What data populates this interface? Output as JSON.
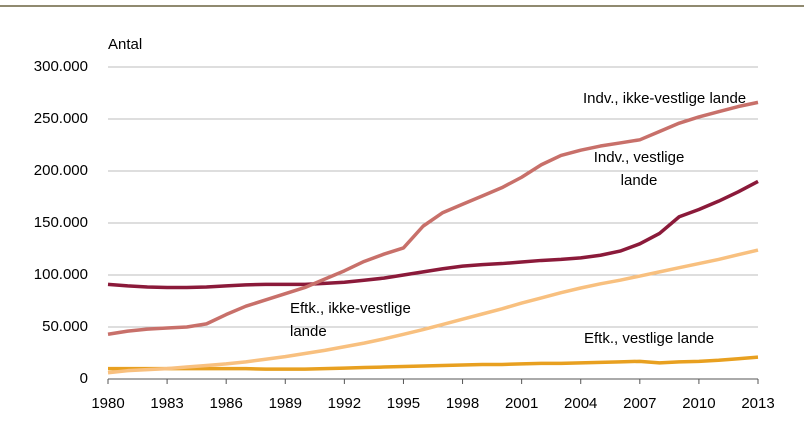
{
  "chart_data": {
    "type": "line",
    "y_axis_label": "Antal",
    "x": [
      1980,
      1981,
      1982,
      1983,
      1984,
      1985,
      1986,
      1987,
      1988,
      1989,
      1990,
      1991,
      1992,
      1993,
      1994,
      1995,
      1996,
      1997,
      1998,
      1999,
      2000,
      2001,
      2002,
      2003,
      2004,
      2005,
      2006,
      2007,
      2008,
      2009,
      2010,
      2011,
      2012,
      2013
    ],
    "series": [
      {
        "name": "Indv., ikke-vestlige lande",
        "color": "#c8706a",
        "values": [
          43000,
          46000,
          48000,
          49000,
          50000,
          53000,
          62000,
          70000,
          76000,
          82000,
          88000,
          96000,
          104000,
          113000,
          120000,
          126000,
          147000,
          160000,
          168000,
          176000,
          184000,
          194000,
          206000,
          215000,
          220000,
          224000,
          227000,
          230000,
          238000,
          246000,
          252000,
          257000,
          262000,
          266000
        ]
      },
      {
        "name": "Indv., vestlige lande",
        "color": "#8b1a3a",
        "values": [
          91000,
          89500,
          88500,
          88000,
          88000,
          88500,
          89500,
          90500,
          91000,
          91000,
          91000,
          92000,
          93000,
          95000,
          97000,
          100000,
          103000,
          106000,
          108500,
          110000,
          111000,
          112500,
          114000,
          115000,
          116500,
          119000,
          123000,
          130000,
          140000,
          156000,
          163000,
          171000,
          180000,
          190000
        ]
      },
      {
        "name": "Eftk., ikke-vestlige lande",
        "color": "#f8c07f",
        "values": [
          6000,
          8000,
          9000,
          10000,
          11500,
          13000,
          14500,
          16500,
          19000,
          21500,
          24500,
          27500,
          31000,
          34500,
          38500,
          43000,
          47500,
          52500,
          57500,
          62500,
          67500,
          73000,
          78000,
          83000,
          87500,
          91500,
          95000,
          99000,
          103000,
          107000,
          111000,
          115000,
          119500,
          124000
        ]
      },
      {
        "name": "Eftk., vestlige lande",
        "color": "#e8a020",
        "values": [
          10000,
          10000,
          10000,
          10000,
          10000,
          10000,
          10000,
          10000,
          9500,
          9500,
          9500,
          10000,
          10500,
          11000,
          11500,
          12000,
          12500,
          13000,
          13500,
          14000,
          14000,
          14500,
          15000,
          15000,
          15500,
          16000,
          16500,
          17000,
          15500,
          16500,
          17000,
          18000,
          19500,
          21000
        ]
      }
    ],
    "xlim": [
      1980,
      2013
    ],
    "xticks": [
      1980,
      1983,
      1986,
      1989,
      1992,
      1995,
      1998,
      2001,
      2004,
      2007,
      2010,
      2013
    ],
    "ylim": [
      0,
      300000
    ],
    "yticks": [
      0,
      {
        "value": 50000,
        "label": "50.000"
      },
      {
        "value": 100000,
        "label": "100.000"
      },
      {
        "value": 150000,
        "label": "150.000"
      },
      {
        "value": 200000,
        "label": "200.000"
      },
      {
        "value": 250000,
        "label": "250.000"
      },
      {
        "value": 300000,
        "label": "300.000"
      }
    ],
    "grid": true
  }
}
